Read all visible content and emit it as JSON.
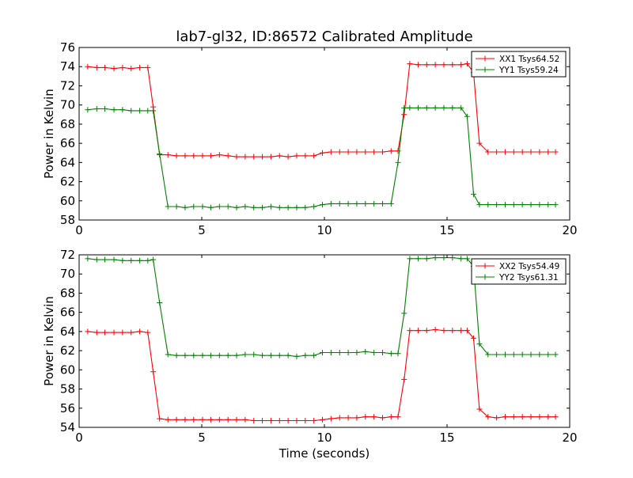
{
  "chart_data": [
    {
      "type": "line",
      "title": "lab7-gl32, ID:86572 Calibrated Amplitude",
      "xlabel": "",
      "ylabel": "Power in Kelvin",
      "xlim": [
        0,
        20
      ],
      "ylim": [
        58,
        76
      ],
      "xticks": [
        "0",
        "5",
        "10",
        "15",
        "20"
      ],
      "yticks": [
        "58",
        "60",
        "62",
        "64",
        "66",
        "68",
        "70",
        "72",
        "74",
        "76"
      ],
      "grid": false,
      "legend_position": "top-right",
      "x": [
        0.35,
        0.72,
        1.05,
        1.42,
        1.77,
        2.12,
        2.47,
        2.8,
        3.02,
        3.28,
        3.62,
        3.97,
        4.32,
        4.67,
        5.03,
        5.37,
        5.72,
        6.07,
        6.42,
        6.77,
        7.12,
        7.47,
        7.82,
        8.17,
        8.52,
        8.87,
        9.22,
        9.57,
        9.92,
        10.27,
        10.62,
        10.97,
        11.32,
        11.67,
        12.02,
        12.37,
        12.72,
        13.0,
        13.25,
        13.48,
        13.82,
        14.17,
        14.52,
        14.87,
        15.22,
        15.57,
        15.82,
        16.08,
        16.32,
        16.67,
        17.02,
        17.37,
        17.72,
        18.07,
        18.42,
        18.77,
        19.12,
        19.42
      ],
      "series": [
        {
          "name": "XX1 Tsys64.52",
          "color": "#ff0000",
          "values": [
            74.0,
            73.9,
            73.9,
            73.8,
            73.9,
            73.8,
            73.9,
            73.9,
            69.8,
            64.8,
            64.8,
            64.7,
            64.7,
            64.7,
            64.7,
            64.7,
            64.8,
            64.7,
            64.6,
            64.6,
            64.6,
            64.6,
            64.6,
            64.7,
            64.6,
            64.7,
            64.7,
            64.7,
            65.0,
            65.1,
            65.1,
            65.1,
            65.1,
            65.1,
            65.1,
            65.1,
            65.2,
            65.2,
            69.0,
            74.3,
            74.2,
            74.2,
            74.2,
            74.2,
            74.2,
            74.2,
            74.3,
            73.4,
            66.0,
            65.1,
            65.1,
            65.1,
            65.1,
            65.1,
            65.1,
            65.1,
            65.1,
            65.1
          ]
        },
        {
          "name": "YY1 Tsys59.24",
          "color": "#008000",
          "values": [
            69.5,
            69.6,
            69.6,
            69.5,
            69.5,
            69.4,
            69.4,
            69.4,
            69.4,
            64.9,
            59.4,
            59.4,
            59.3,
            59.4,
            59.4,
            59.3,
            59.4,
            59.4,
            59.3,
            59.4,
            59.3,
            59.3,
            59.4,
            59.3,
            59.3,
            59.3,
            59.3,
            59.4,
            59.6,
            59.7,
            59.7,
            59.7,
            59.7,
            59.7,
            59.7,
            59.7,
            59.7,
            64.0,
            69.7,
            69.7,
            69.7,
            69.7,
            69.7,
            69.7,
            69.7,
            69.7,
            68.8,
            60.7,
            59.6,
            59.6,
            59.6,
            59.6,
            59.6,
            59.6,
            59.6,
            59.6,
            59.6,
            59.6
          ]
        }
      ]
    },
    {
      "type": "line",
      "title": "",
      "xlabel": "Time (seconds)",
      "ylabel": "Power in Kelvin",
      "xlim": [
        0,
        20
      ],
      "ylim": [
        54,
        72
      ],
      "xticks": [
        "0",
        "5",
        "10",
        "15",
        "20"
      ],
      "yticks": [
        "54",
        "56",
        "58",
        "60",
        "62",
        "64",
        "66",
        "68",
        "70",
        "72"
      ],
      "grid": false,
      "legend_position": "top-right",
      "x": [
        0.35,
        0.72,
        1.05,
        1.42,
        1.77,
        2.12,
        2.47,
        2.8,
        3.02,
        3.28,
        3.62,
        3.97,
        4.32,
        4.67,
        5.03,
        5.37,
        5.72,
        6.07,
        6.42,
        6.77,
        7.12,
        7.47,
        7.82,
        8.17,
        8.52,
        8.87,
        9.22,
        9.57,
        9.92,
        10.27,
        10.62,
        10.97,
        11.32,
        11.67,
        12.02,
        12.37,
        12.72,
        13.0,
        13.25,
        13.48,
        13.82,
        14.17,
        14.52,
        14.87,
        15.22,
        15.57,
        15.82,
        16.08,
        16.32,
        16.67,
        17.02,
        17.37,
        17.72,
        18.07,
        18.42,
        18.77,
        19.12,
        19.42
      ],
      "series": [
        {
          "name": "XX2 Tsys54.49",
          "color": "#ff0000",
          "values": [
            64.0,
            63.9,
            63.9,
            63.9,
            63.9,
            63.9,
            64.0,
            63.9,
            59.8,
            54.9,
            54.8,
            54.8,
            54.8,
            54.8,
            54.8,
            54.8,
            54.8,
            54.8,
            54.8,
            54.8,
            54.7,
            54.7,
            54.7,
            54.7,
            54.7,
            54.7,
            54.7,
            54.7,
            54.8,
            54.9,
            55.0,
            55.0,
            55.0,
            55.1,
            55.1,
            55.0,
            55.1,
            55.1,
            59.0,
            64.1,
            64.1,
            64.1,
            64.2,
            64.1,
            64.1,
            64.1,
            64.1,
            63.3,
            55.9,
            55.1,
            55.0,
            55.1,
            55.1,
            55.1,
            55.1,
            55.1,
            55.1,
            55.1
          ]
        },
        {
          "name": "YY2 Tsys61.31",
          "color": "#008000",
          "values": [
            71.6,
            71.5,
            71.5,
            71.5,
            71.4,
            71.4,
            71.4,
            71.4,
            71.5,
            67.0,
            61.6,
            61.5,
            61.5,
            61.5,
            61.5,
            61.5,
            61.5,
            61.5,
            61.5,
            61.6,
            61.6,
            61.5,
            61.5,
            61.5,
            61.5,
            61.4,
            61.5,
            61.5,
            61.8,
            61.8,
            61.8,
            61.8,
            61.8,
            61.9,
            61.8,
            61.8,
            61.7,
            61.7,
            65.9,
            71.6,
            71.6,
            71.6,
            71.7,
            71.7,
            71.7,
            71.6,
            71.6,
            70.8,
            62.7,
            61.6,
            61.6,
            61.6,
            61.6,
            61.6,
            61.6,
            61.6,
            61.6,
            61.6
          ]
        }
      ]
    }
  ]
}
